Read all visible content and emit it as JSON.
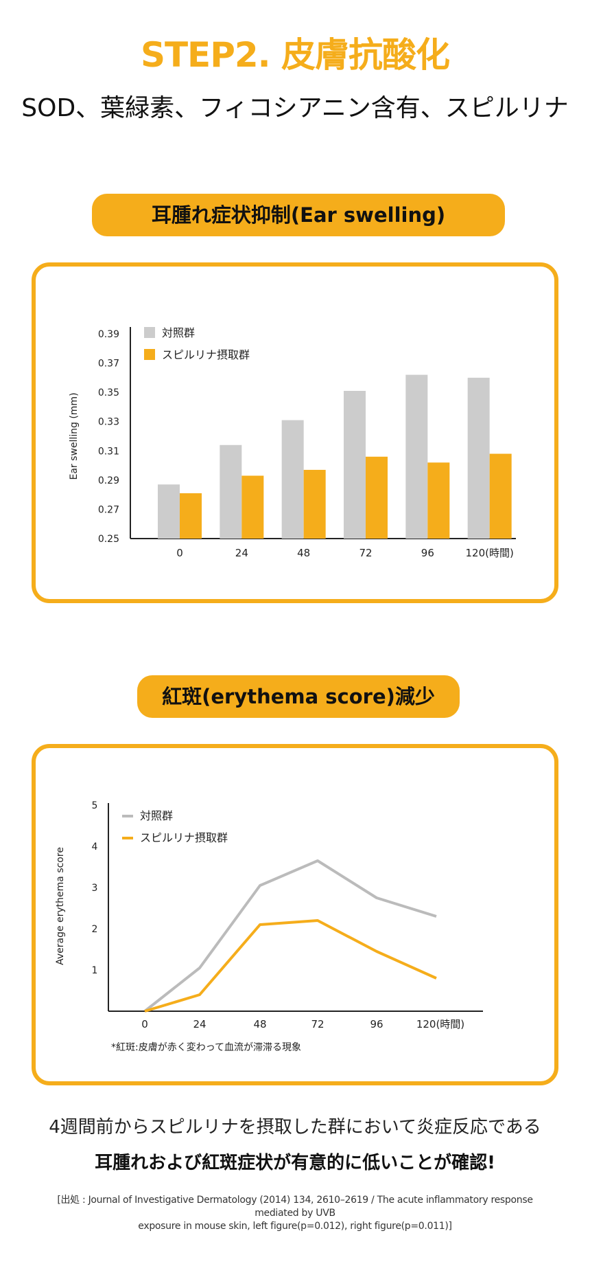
{
  "header": {
    "title": "STEP2. 皮膚抗酸化",
    "subtitle": "SOD、葉緑素、フィコシアニン含有、スピルリナ"
  },
  "section1": {
    "pill_label": "耳腫れ症状抑制(Ear swelling)"
  },
  "section2": {
    "pill_label": "紅斑(erythema score)減少"
  },
  "colors": {
    "accent": "#f5ad1b",
    "control": "#cccccc",
    "control_line": "#bbbbbb"
  },
  "chart_data": [
    {
      "type": "bar",
      "title": "",
      "xlabel": "",
      "ylabel": "Ear swelling (mm)",
      "ylim": [
        0.25,
        0.39
      ],
      "yticks": [
        "0.39",
        "0.37",
        "0.35",
        "0.33",
        "0.31",
        "0.29",
        "0.27",
        "0.25"
      ],
      "categories": [
        "0",
        "24",
        "48",
        "72",
        "96",
        "120(時間)"
      ],
      "series": [
        {
          "name": "対照群",
          "color": "#cccccc",
          "values": [
            0.287,
            0.314,
            0.331,
            0.351,
            0.362,
            0.36
          ]
        },
        {
          "name": "スピルリナ摂取群",
          "color": "#f5ad1b",
          "values": [
            0.281,
            0.293,
            0.297,
            0.306,
            0.302,
            0.308
          ]
        }
      ],
      "legend": "top-left",
      "grid": false
    },
    {
      "type": "line",
      "title": "",
      "xlabel": "",
      "ylabel": "Average erythema score",
      "ylim": [
        0,
        5
      ],
      "yticks": [
        "5",
        "4",
        "3",
        "2",
        "1"
      ],
      "categories": [
        "0",
        "24",
        "48",
        "72",
        "96",
        "120(時間)"
      ],
      "series": [
        {
          "name": "対照群",
          "color": "#bbbbbb",
          "values": [
            0,
            1.05,
            3.05,
            3.65,
            2.75,
            2.3
          ]
        },
        {
          "name": "スピルリナ摂取群",
          "color": "#f5ad1b",
          "values": [
            0,
            0.4,
            2.1,
            2.2,
            1.45,
            0.8
          ]
        }
      ],
      "legend": "top-left",
      "grid": false,
      "note": "*紅斑:皮膚が赤く変わって血流が滞滞る現象"
    }
  ],
  "footer": {
    "line1": "4週間前からスピルリナを摂取した群において炎症反応である",
    "line2": "耳腫れおよび紅斑症状が有意的に低いことが確認!",
    "source_line1": "[出処 : Journal of Investigative Dermatology (2014) 134, 2610–2619 / The acute inflammatory response mediated by UVB",
    "source_line2": "exposure in mouse skin, left figure(p=0.012), right figure(p=0.011)]"
  }
}
